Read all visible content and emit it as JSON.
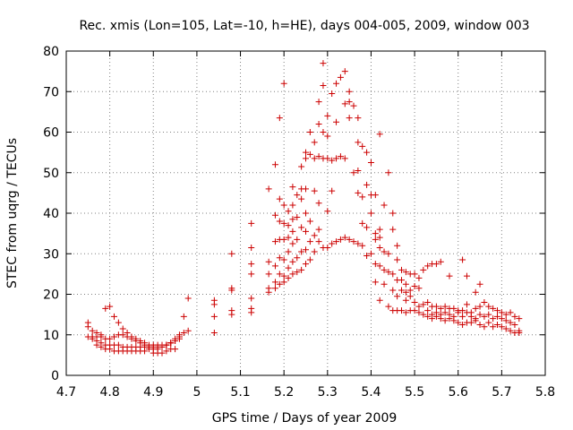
{
  "chart_data": {
    "type": "scatter",
    "title": "Rec. xmis (Lon=105, Lat=-10, h=HE), days 004-005, 2009, window 003",
    "xlabel": "GPS time / Days of year 2009",
    "ylabel": "STEC from uqrg / TECUs",
    "xlim": [
      4.7,
      5.8
    ],
    "ylim": [
      0,
      80
    ],
    "xticks": [
      "4.7",
      "4.8",
      "4.9",
      "5",
      "5.1",
      "5.2",
      "5.3",
      "5.4",
      "5.5",
      "5.6",
      "5.7",
      "5.8"
    ],
    "yticks": [
      "0",
      "10",
      "20",
      "30",
      "40",
      "50",
      "60",
      "70",
      "80"
    ],
    "grid": true,
    "marker": "plus",
    "color": "#cc0000",
    "points": [
      [
        4.75,
        13.0
      ],
      [
        4.75,
        12.0
      ],
      [
        4.76,
        11.0
      ],
      [
        4.77,
        10.5
      ],
      [
        4.78,
        10.0
      ],
      [
        4.79,
        16.5
      ],
      [
        4.8,
        17.0
      ],
      [
        4.81,
        14.5
      ],
      [
        4.82,
        13.0
      ],
      [
        4.83,
        11.5
      ],
      [
        4.84,
        10.5
      ],
      [
        4.85,
        9.5
      ],
      [
        4.86,
        9.0
      ],
      [
        4.87,
        8.5
      ],
      [
        4.88,
        8.0
      ],
      [
        4.89,
        7.5
      ],
      [
        4.9,
        7.5
      ],
      [
        4.91,
        7.0
      ],
      [
        4.92,
        7.0
      ],
      [
        4.93,
        7.5
      ],
      [
        4.94,
        8.0
      ],
      [
        4.95,
        8.5
      ],
      [
        4.96,
        9.5
      ],
      [
        4.97,
        14.5
      ],
      [
        4.98,
        19.0
      ],
      [
        4.75,
        9.5
      ],
      [
        4.76,
        9.5
      ],
      [
        4.77,
        9.5
      ],
      [
        4.78,
        9.5
      ],
      [
        4.79,
        9.0
      ],
      [
        4.8,
        9.0
      ],
      [
        4.81,
        9.5
      ],
      [
        4.82,
        10.0
      ],
      [
        4.83,
        10.0
      ],
      [
        4.84,
        9.5
      ],
      [
        4.85,
        9.0
      ],
      [
        4.86,
        8.5
      ],
      [
        4.87,
        8.0
      ],
      [
        4.88,
        7.5
      ],
      [
        4.89,
        7.0
      ],
      [
        4.9,
        6.5
      ],
      [
        4.91,
        6.5
      ],
      [
        4.92,
        7.0
      ],
      [
        4.93,
        7.5
      ],
      [
        4.94,
        8.0
      ],
      [
        4.95,
        9.0
      ],
      [
        4.96,
        10.0
      ],
      [
        4.97,
        10.5
      ],
      [
        4.98,
        11.0
      ],
      [
        4.76,
        9.0
      ],
      [
        4.77,
        8.5
      ],
      [
        4.78,
        8.0
      ],
      [
        4.79,
        7.5
      ],
      [
        4.8,
        7.5
      ],
      [
        4.81,
        7.5
      ],
      [
        4.82,
        7.5
      ],
      [
        4.83,
        7.0
      ],
      [
        4.84,
        7.0
      ],
      [
        4.85,
        7.0
      ],
      [
        4.86,
        7.0
      ],
      [
        4.87,
        7.0
      ],
      [
        4.88,
        7.0
      ],
      [
        4.89,
        7.0
      ],
      [
        4.9,
        7.0
      ],
      [
        4.91,
        7.5
      ],
      [
        4.92,
        7.5
      ],
      [
        4.93,
        7.5
      ],
      [
        4.94,
        8.0
      ],
      [
        4.95,
        8.5
      ],
      [
        4.96,
        9.0
      ],
      [
        4.77,
        7.5
      ],
      [
        4.78,
        7.0
      ],
      [
        4.79,
        6.5
      ],
      [
        4.8,
        6.5
      ],
      [
        4.81,
        6.0
      ],
      [
        4.82,
        6.0
      ],
      [
        4.83,
        6.0
      ],
      [
        4.84,
        6.0
      ],
      [
        4.85,
        6.0
      ],
      [
        4.86,
        6.0
      ],
      [
        4.87,
        6.0
      ],
      [
        4.88,
        6.0
      ],
      [
        4.89,
        6.5
      ],
      [
        4.9,
        5.5
      ],
      [
        4.91,
        5.5
      ],
      [
        4.92,
        5.5
      ],
      [
        4.93,
        6.0
      ],
      [
        4.94,
        6.5
      ],
      [
        4.95,
        6.5
      ],
      [
        5.04,
        18.5
      ],
      [
        5.04,
        17.5
      ],
      [
        5.04,
        14.5
      ],
      [
        5.04,
        10.5
      ],
      [
        5.08,
        30.0
      ],
      [
        5.08,
        21.5
      ],
      [
        5.08,
        21.0
      ],
      [
        5.08,
        16.0
      ],
      [
        5.08,
        15.0
      ],
      [
        5.125,
        37.5
      ],
      [
        5.125,
        31.5
      ],
      [
        5.125,
        27.5
      ],
      [
        5.125,
        25.0
      ],
      [
        5.125,
        19.0
      ],
      [
        5.125,
        16.5
      ],
      [
        5.125,
        15.5
      ],
      [
        5.165,
        46.0
      ],
      [
        5.165,
        28.0
      ],
      [
        5.165,
        25.0
      ],
      [
        5.165,
        21.5
      ],
      [
        5.165,
        20.5
      ],
      [
        5.18,
        52.0
      ],
      [
        5.18,
        39.5
      ],
      [
        5.18,
        33.0
      ],
      [
        5.18,
        27.0
      ],
      [
        5.18,
        23.0
      ],
      [
        5.18,
        21.5
      ],
      [
        5.19,
        63.5
      ],
      [
        5.19,
        43.5
      ],
      [
        5.19,
        38.0
      ],
      [
        5.19,
        33.5
      ],
      [
        5.19,
        29.0
      ],
      [
        5.19,
        25.0
      ],
      [
        5.19,
        22.5
      ],
      [
        5.2,
        72.0
      ],
      [
        5.2,
        42.0
      ],
      [
        5.2,
        37.5
      ],
      [
        5.2,
        33.5
      ],
      [
        5.2,
        28.5
      ],
      [
        5.2,
        24.5
      ],
      [
        5.2,
        23.0
      ],
      [
        5.21,
        40.5
      ],
      [
        5.21,
        37.0
      ],
      [
        5.21,
        34.0
      ],
      [
        5.21,
        30.5
      ],
      [
        5.21,
        26.5
      ],
      [
        5.21,
        24.0
      ],
      [
        5.22,
        46.5
      ],
      [
        5.22,
        42.0
      ],
      [
        5.22,
        38.5
      ],
      [
        5.22,
        35.5
      ],
      [
        5.22,
        32.5
      ],
      [
        5.22,
        28.0
      ],
      [
        5.22,
        25.0
      ],
      [
        5.23,
        44.5
      ],
      [
        5.23,
        39.0
      ],
      [
        5.23,
        33.5
      ],
      [
        5.23,
        29.0
      ],
      [
        5.23,
        25.5
      ],
      [
        5.24,
        51.5
      ],
      [
        5.24,
        46.0
      ],
      [
        5.24,
        43.5
      ],
      [
        5.24,
        36.5
      ],
      [
        5.24,
        30.5
      ],
      [
        5.24,
        26.0
      ],
      [
        5.25,
        55.0
      ],
      [
        5.25,
        53.5
      ],
      [
        5.25,
        46.0
      ],
      [
        5.25,
        40.0
      ],
      [
        5.25,
        35.5
      ],
      [
        5.25,
        31.0
      ],
      [
        5.25,
        27.5
      ],
      [
        5.26,
        60.0
      ],
      [
        5.26,
        54.5
      ],
      [
        5.26,
        38.0
      ],
      [
        5.26,
        33.0
      ],
      [
        5.26,
        28.5
      ],
      [
        5.27,
        57.5
      ],
      [
        5.27,
        53.5
      ],
      [
        5.27,
        45.5
      ],
      [
        5.27,
        34.5
      ],
      [
        5.27,
        30.5
      ],
      [
        5.28,
        67.5
      ],
      [
        5.28,
        62.0
      ],
      [
        5.28,
        54.0
      ],
      [
        5.28,
        42.5
      ],
      [
        5.28,
        36.0
      ],
      [
        5.28,
        33.0
      ],
      [
        5.29,
        77.0
      ],
      [
        5.29,
        71.5
      ],
      [
        5.29,
        60.0
      ],
      [
        5.29,
        53.5
      ],
      [
        5.29,
        31.5
      ],
      [
        5.3,
        64.0
      ],
      [
        5.3,
        59.0
      ],
      [
        5.3,
        53.5
      ],
      [
        5.3,
        40.5
      ],
      [
        5.3,
        31.5
      ],
      [
        5.31,
        69.5
      ],
      [
        5.31,
        53.0
      ],
      [
        5.31,
        45.5
      ],
      [
        5.31,
        32.5
      ],
      [
        5.32,
        72.0
      ],
      [
        5.32,
        62.5
      ],
      [
        5.32,
        53.5
      ],
      [
        5.32,
        33.0
      ],
      [
        5.33,
        73.5
      ],
      [
        5.33,
        54.0
      ],
      [
        5.33,
        33.5
      ],
      [
        5.34,
        75.0
      ],
      [
        5.34,
        67.0
      ],
      [
        5.34,
        53.5
      ],
      [
        5.34,
        34.0
      ],
      [
        5.35,
        70.0
      ],
      [
        5.35,
        67.5
      ],
      [
        5.35,
        63.5
      ],
      [
        5.35,
        33.5
      ],
      [
        5.36,
        66.5
      ],
      [
        5.36,
        50.0
      ],
      [
        5.36,
        33.0
      ],
      [
        5.37,
        63.5
      ],
      [
        5.37,
        57.5
      ],
      [
        5.37,
        50.5
      ],
      [
        5.37,
        45.0
      ],
      [
        5.37,
        32.5
      ],
      [
        5.38,
        56.5
      ],
      [
        5.38,
        44.0
      ],
      [
        5.38,
        37.5
      ],
      [
        5.38,
        32.0
      ],
      [
        5.39,
        55.0
      ],
      [
        5.39,
        47.0
      ],
      [
        5.39,
        36.5
      ],
      [
        5.39,
        29.5
      ],
      [
        5.4,
        52.5
      ],
      [
        5.4,
        44.5
      ],
      [
        5.4,
        40.0
      ],
      [
        5.4,
        30.0
      ],
      [
        5.41,
        44.5
      ],
      [
        5.41,
        35.0
      ],
      [
        5.41,
        33.5
      ],
      [
        5.41,
        27.5
      ],
      [
        5.41,
        23.0
      ],
      [
        5.42,
        59.5
      ],
      [
        5.42,
        36.0
      ],
      [
        5.42,
        34.0
      ],
      [
        5.42,
        31.5
      ],
      [
        5.42,
        27.0
      ],
      [
        5.42,
        18.5
      ],
      [
        5.43,
        42.0
      ],
      [
        5.43,
        30.5
      ],
      [
        5.43,
        26.0
      ],
      [
        5.43,
        22.5
      ],
      [
        5.44,
        50.0
      ],
      [
        5.44,
        30.0
      ],
      [
        5.44,
        25.5
      ],
      [
        5.44,
        17.0
      ],
      [
        5.45,
        40.0
      ],
      [
        5.45,
        36.0
      ],
      [
        5.45,
        25.0
      ],
      [
        5.45,
        21.0
      ],
      [
        5.45,
        16.0
      ],
      [
        5.46,
        32.0
      ],
      [
        5.46,
        28.5
      ],
      [
        5.46,
        23.5
      ],
      [
        5.46,
        19.5
      ],
      [
        5.46,
        16.0
      ],
      [
        5.47,
        26.0
      ],
      [
        5.47,
        23.5
      ],
      [
        5.47,
        21.0
      ],
      [
        5.47,
        16.0
      ],
      [
        5.48,
        25.5
      ],
      [
        5.48,
        22.5
      ],
      [
        5.48,
        20.5
      ],
      [
        5.48,
        18.5
      ],
      [
        5.48,
        15.5
      ],
      [
        5.49,
        25.0
      ],
      [
        5.49,
        21.0
      ],
      [
        5.49,
        19.5
      ],
      [
        5.49,
        16.0
      ],
      [
        5.5,
        25.0
      ],
      [
        5.5,
        22.0
      ],
      [
        5.5,
        18.0
      ],
      [
        5.5,
        16.0
      ],
      [
        5.51,
        24.0
      ],
      [
        5.51,
        21.5
      ],
      [
        5.51,
        17.0
      ],
      [
        5.51,
        15.5
      ],
      [
        5.52,
        26.0
      ],
      [
        5.52,
        17.5
      ],
      [
        5.52,
        15.0
      ],
      [
        5.53,
        27.0
      ],
      [
        5.53,
        18.0
      ],
      [
        5.53,
        16.0
      ],
      [
        5.53,
        14.5
      ],
      [
        5.54,
        27.5
      ],
      [
        5.54,
        17.0
      ],
      [
        5.54,
        15.0
      ],
      [
        5.54,
        14.0
      ],
      [
        5.55,
        27.5
      ],
      [
        5.55,
        17.0
      ],
      [
        5.55,
        15.5
      ],
      [
        5.55,
        14.5
      ],
      [
        5.56,
        28.0
      ],
      [
        5.56,
        16.5
      ],
      [
        5.56,
        15.0
      ],
      [
        5.56,
        14.0
      ],
      [
        5.57,
        17.0
      ],
      [
        5.57,
        15.5
      ],
      [
        5.57,
        13.5
      ],
      [
        5.58,
        24.5
      ],
      [
        5.58,
        16.5
      ],
      [
        5.58,
        15.0
      ],
      [
        5.58,
        14.0
      ],
      [
        5.59,
        16.5
      ],
      [
        5.59,
        14.5
      ],
      [
        5.59,
        13.5
      ],
      [
        5.6,
        16.0
      ],
      [
        5.6,
        15.5
      ],
      [
        5.6,
        13.0
      ],
      [
        5.61,
        28.5
      ],
      [
        5.61,
        16.0
      ],
      [
        5.61,
        14.5
      ],
      [
        5.61,
        12.5
      ],
      [
        5.62,
        24.5
      ],
      [
        5.62,
        17.5
      ],
      [
        5.62,
        15.5
      ],
      [
        5.62,
        13.0
      ],
      [
        5.63,
        15.5
      ],
      [
        5.63,
        14.5
      ],
      [
        5.63,
        13.0
      ],
      [
        5.64,
        20.5
      ],
      [
        5.64,
        16.5
      ],
      [
        5.64,
        14.0
      ],
      [
        5.64,
        13.5
      ],
      [
        5.65,
        22.5
      ],
      [
        5.65,
        17.0
      ],
      [
        5.65,
        15.0
      ],
      [
        5.65,
        12.5
      ],
      [
        5.66,
        18.0
      ],
      [
        5.66,
        14.5
      ],
      [
        5.66,
        12.0
      ],
      [
        5.67,
        17.0
      ],
      [
        5.67,
        15.0
      ],
      [
        5.67,
        13.0
      ],
      [
        5.68,
        16.5
      ],
      [
        5.68,
        14.0
      ],
      [
        5.68,
        12.0
      ],
      [
        5.69,
        16.0
      ],
      [
        5.69,
        14.5
      ],
      [
        5.69,
        12.5
      ],
      [
        5.7,
        15.5
      ],
      [
        5.7,
        14.0
      ],
      [
        5.7,
        12.0
      ],
      [
        5.71,
        15.0
      ],
      [
        5.71,
        13.5
      ],
      [
        5.71,
        11.5
      ],
      [
        5.72,
        15.5
      ],
      [
        5.72,
        13.0
      ],
      [
        5.72,
        11.0
      ],
      [
        5.73,
        14.5
      ],
      [
        5.73,
        12.5
      ],
      [
        5.73,
        10.5
      ],
      [
        5.74,
        14.0
      ],
      [
        5.74,
        11.0
      ],
      [
        5.74,
        10.5
      ]
    ]
  }
}
